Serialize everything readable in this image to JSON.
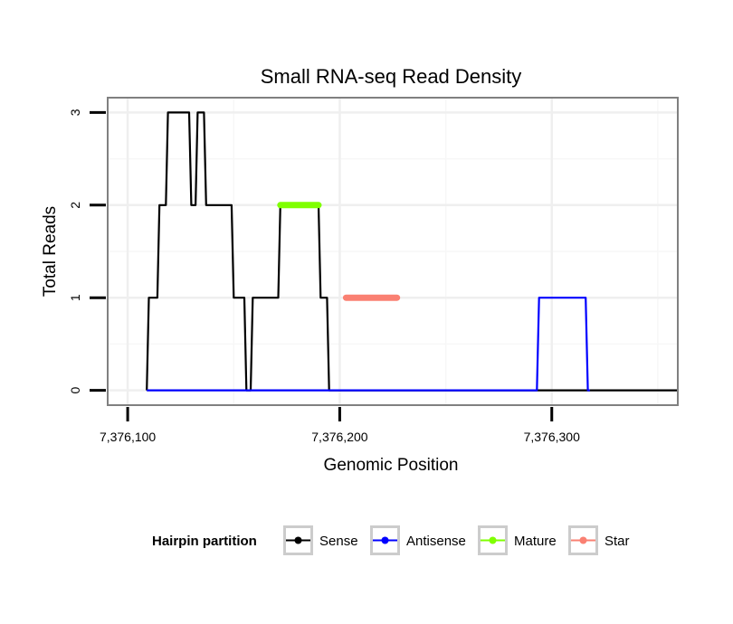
{
  "chart_data": {
    "type": "line",
    "title": "Small RNA-seq Read Density",
    "xlabel": "Genomic Position",
    "ylabel": "Total Reads",
    "xlim": [
      7376091,
      7376359
    ],
    "ylim": [
      -0.15,
      3.15
    ],
    "x_ticks": [
      7376100,
      7376200,
      7376300
    ],
    "x_tick_labels": [
      "7,376,100",
      "7,376,200",
      "7,376,300"
    ],
    "y_ticks": [
      0,
      1,
      2,
      3
    ],
    "y_tick_labels": [
      "0",
      "1",
      "2",
      "3"
    ],
    "grid": true,
    "legend": {
      "title": "Hairpin partition",
      "position": "bottom",
      "entries": [
        {
          "name": "Sense",
          "color": "#000000"
        },
        {
          "name": "Antisense",
          "color": "#0000ff"
        },
        {
          "name": "Mature",
          "color": "#7fff00"
        },
        {
          "name": "Star",
          "color": "#fa8072"
        }
      ]
    },
    "series": [
      {
        "name": "Sense",
        "color": "#000000",
        "style": "line",
        "x": [
          7376109,
          7376110,
          7376111,
          7376114,
          7376115,
          7376118,
          7376119,
          7376122,
          7376123,
          7376129,
          7376130,
          7376132,
          7376133,
          7376136,
          7376137,
          7376149,
          7376150,
          7376154,
          7376155,
          7376156,
          7376158,
          7376159,
          7376171,
          7376172,
          7376190,
          7376191,
          7376194,
          7376195,
          7376203,
          7376204,
          7376359
        ],
        "y": [
          0,
          1,
          1,
          1,
          2,
          2,
          3,
          3,
          3,
          3,
          2,
          2,
          3,
          3,
          2,
          2,
          1,
          1,
          1,
          0,
          0,
          1,
          1,
          2,
          2,
          1,
          1,
          0,
          0,
          0,
          0
        ]
      },
      {
        "name": "Antisense",
        "color": "#0000ff",
        "style": "line",
        "x": [
          7376109,
          7376293,
          7376294,
          7376316,
          7376317,
          7376318
        ],
        "y": [
          0,
          0,
          1,
          1,
          0,
          0
        ]
      },
      {
        "name": "Mature",
        "color": "#7fff00",
        "style": "thick",
        "x": [
          7376172,
          7376190
        ],
        "y": [
          2,
          2
        ]
      },
      {
        "name": "Star",
        "color": "#fa8072",
        "style": "thick",
        "x": [
          7376203,
          7376227
        ],
        "y": [
          1,
          1
        ]
      }
    ]
  }
}
